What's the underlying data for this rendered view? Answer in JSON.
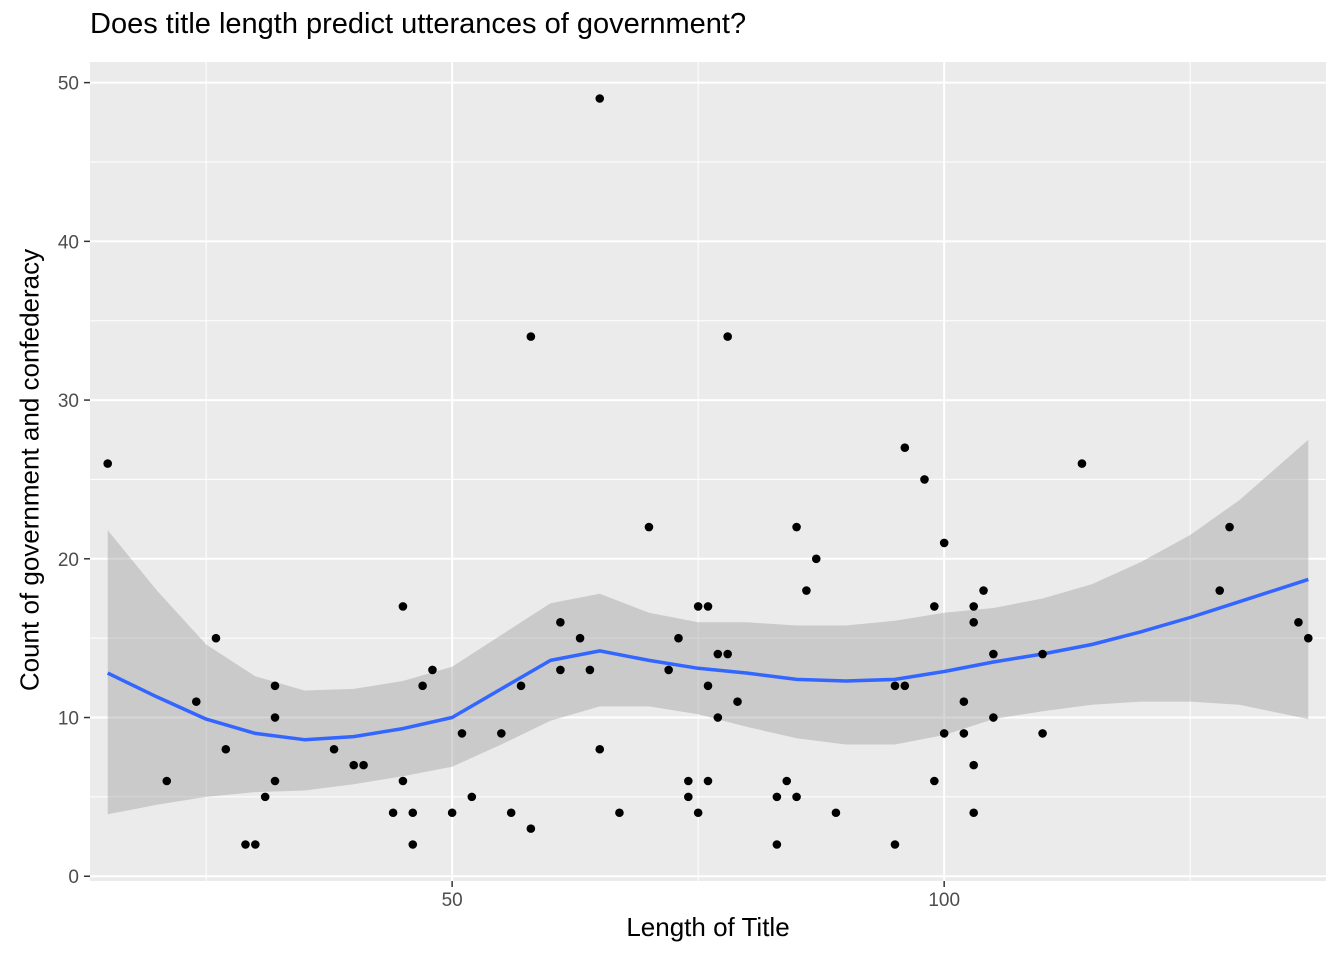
{
  "chart_data": {
    "type": "scatter",
    "title": "Does title length predict utterances of government?",
    "xlabel": "Length of Title",
    "ylabel": "Count of government and confederacy",
    "xlim": [
      13.2,
      138.8
    ],
    "ylim": [
      -0.3,
      51.3
    ],
    "x_ticks": [
      50,
      100
    ],
    "y_ticks": [
      0,
      10,
      20,
      30,
      40,
      50
    ],
    "grid": true,
    "colors": {
      "panel_background": "#ebebeb",
      "grid": "#ffffff",
      "points": "#000000",
      "smooth_line": "#3366ff",
      "confidence_band": "#999999"
    },
    "points": [
      [
        15,
        26
      ],
      [
        21,
        6
      ],
      [
        24,
        11
      ],
      [
        26,
        15
      ],
      [
        27,
        8
      ],
      [
        29,
        2
      ],
      [
        30,
        2
      ],
      [
        31,
        5
      ],
      [
        32,
        12
      ],
      [
        32,
        10
      ],
      [
        32,
        6
      ],
      [
        38,
        8
      ],
      [
        40,
        7
      ],
      [
        41,
        7
      ],
      [
        44,
        4
      ],
      [
        45,
        17
      ],
      [
        45,
        6
      ],
      [
        46,
        4
      ],
      [
        46,
        2
      ],
      [
        47,
        12
      ],
      [
        48,
        13
      ],
      [
        50,
        4
      ],
      [
        51,
        9
      ],
      [
        52,
        5
      ],
      [
        55,
        9
      ],
      [
        56,
        4
      ],
      [
        57,
        12
      ],
      [
        58,
        34
      ],
      [
        58,
        3
      ],
      [
        61,
        16
      ],
      [
        61,
        13
      ],
      [
        63,
        15
      ],
      [
        64,
        13
      ],
      [
        65,
        49
      ],
      [
        65,
        8
      ],
      [
        67,
        4
      ],
      [
        70,
        22
      ],
      [
        72,
        13
      ],
      [
        73,
        15
      ],
      [
        74,
        6
      ],
      [
        74,
        5
      ],
      [
        75,
        17
      ],
      [
        75,
        4
      ],
      [
        76,
        17
      ],
      [
        76,
        12
      ],
      [
        76,
        6
      ],
      [
        77,
        10
      ],
      [
        77,
        14
      ],
      [
        78,
        34
      ],
      [
        78,
        14
      ],
      [
        79,
        11
      ],
      [
        83,
        5
      ],
      [
        83,
        2
      ],
      [
        84,
        6
      ],
      [
        85,
        22
      ],
      [
        85,
        5
      ],
      [
        86,
        18
      ],
      [
        87,
        20
      ],
      [
        89,
        4
      ],
      [
        95,
        12
      ],
      [
        95,
        2
      ],
      [
        96,
        27
      ],
      [
        96,
        12
      ],
      [
        98,
        25
      ],
      [
        99,
        17
      ],
      [
        99,
        6
      ],
      [
        100,
        21
      ],
      [
        100,
        9
      ],
      [
        102,
        11
      ],
      [
        102,
        9
      ],
      [
        103,
        17
      ],
      [
        103,
        16
      ],
      [
        103,
        7
      ],
      [
        103,
        4
      ],
      [
        104,
        18
      ],
      [
        105,
        14
      ],
      [
        105,
        10
      ],
      [
        110,
        14
      ],
      [
        110,
        9
      ],
      [
        114,
        26
      ],
      [
        128,
        18
      ],
      [
        129,
        22
      ],
      [
        136,
        16
      ],
      [
        137,
        15
      ]
    ],
    "smooth": {
      "x": [
        15,
        20,
        25,
        30,
        35,
        40,
        45,
        50,
        55,
        60,
        65,
        70,
        75,
        80,
        85,
        90,
        95,
        100,
        105,
        110,
        115,
        120,
        125,
        130,
        137
      ],
      "y": [
        12.8,
        11.3,
        9.9,
        9.0,
        8.6,
        8.8,
        9.3,
        10.0,
        11.8,
        13.6,
        14.2,
        13.6,
        13.1,
        12.8,
        12.4,
        12.3,
        12.4,
        12.9,
        13.5,
        14.0,
        14.6,
        15.4,
        16.3,
        17.3,
        18.7
      ],
      "lower": [
        3.9,
        4.5,
        5.0,
        5.3,
        5.4,
        5.8,
        6.3,
        6.9,
        8.3,
        9.8,
        10.7,
        10.7,
        10.2,
        9.4,
        8.7,
        8.3,
        8.3,
        8.9,
        9.9,
        10.4,
        10.8,
        11.0,
        11.0,
        10.8,
        9.9
      ],
      "upper": [
        21.8,
        18.0,
        14.6,
        12.6,
        11.7,
        11.8,
        12.3,
        13.2,
        15.2,
        17.2,
        17.8,
        16.6,
        16.0,
        16.0,
        15.8,
        15.8,
        16.1,
        16.6,
        16.9,
        17.5,
        18.4,
        19.8,
        21.5,
        23.7,
        27.5
      ]
    }
  }
}
